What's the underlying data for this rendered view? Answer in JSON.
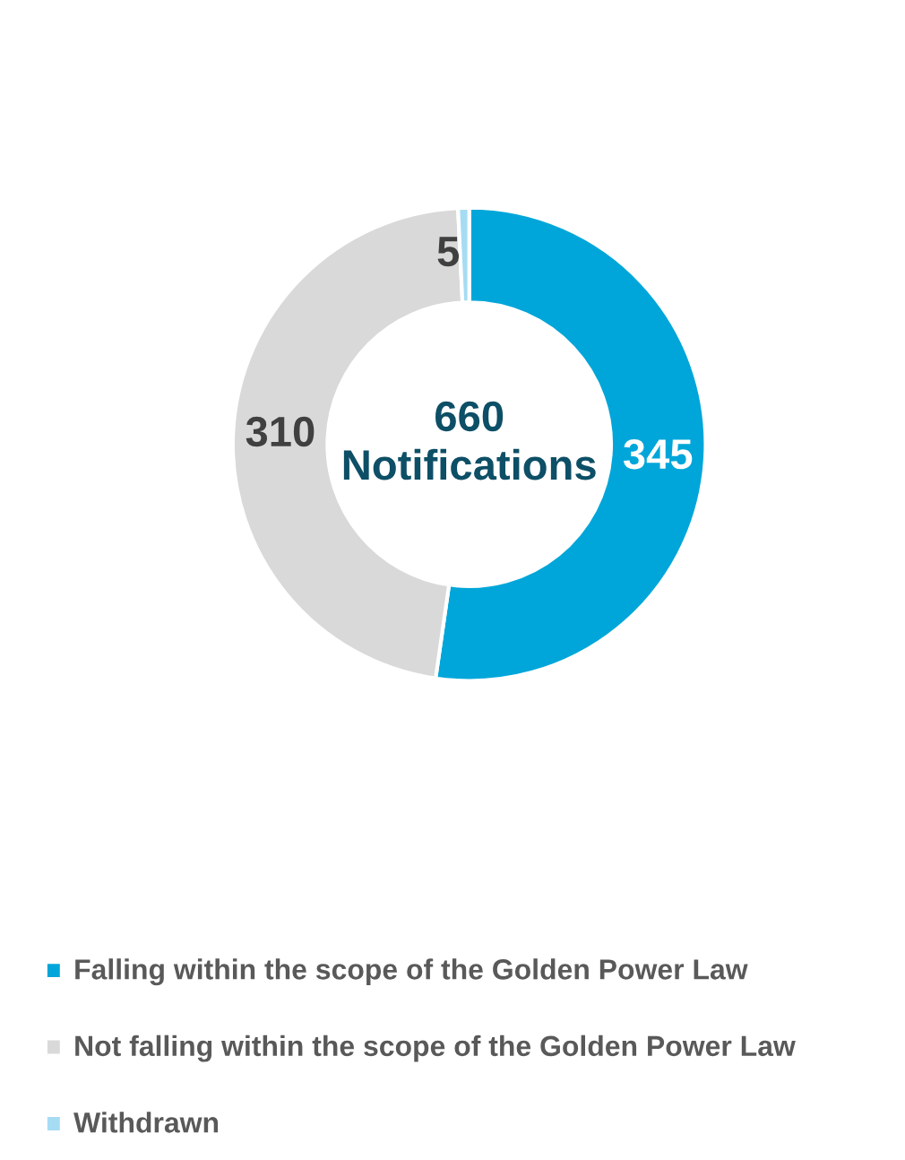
{
  "chart_data": {
    "type": "donut",
    "categories": [
      "Falling within the scope of the Golden Power Law",
      "Not falling within the scope of the Golden Power Law",
      "Withdrawn"
    ],
    "values": [
      345,
      310,
      5
    ],
    "colors": [
      "#00a6d9",
      "#d9d9d9",
      "#a6dcf3"
    ],
    "data_labels": true,
    "annotations": [
      "660\nNotifications"
    ],
    "legend": "bottom"
  }
}
